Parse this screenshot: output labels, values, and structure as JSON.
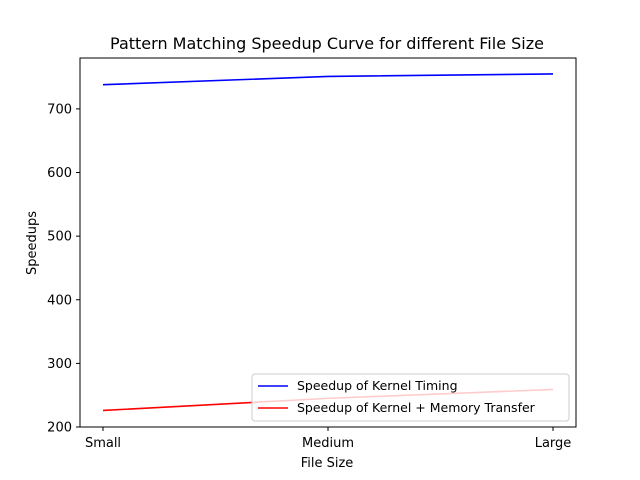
{
  "chart_data": {
    "type": "line",
    "title": "Pattern Matching Speedup Curve for different File Size",
    "xlabel": "File Size",
    "ylabel": "Speedups",
    "categories": [
      "Small",
      "Medium",
      "Large"
    ],
    "ylim": [
      200,
      780
    ],
    "yticks": [
      200,
      300,
      400,
      500,
      600,
      700
    ],
    "grid": false,
    "legend_position": "lower-right",
    "series": [
      {
        "name": "Speedup of Kernel Timing",
        "color": "#0000ff",
        "values": [
          738,
          751,
          755
        ]
      },
      {
        "name": "Speedup of Kernel + Memory Transfer",
        "color": "#ff0000",
        "values": [
          226,
          245,
          259
        ]
      }
    ]
  }
}
